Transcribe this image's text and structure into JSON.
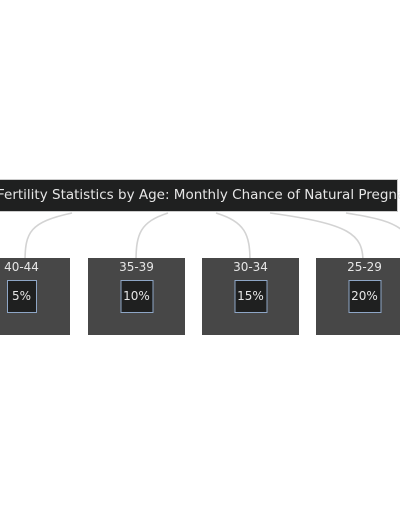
{
  "title": "Fertility Statistics by Age: Monthly Chance of Natural Pregnancy",
  "groups": [
    {
      "age": "40-44",
      "chance": "5%"
    },
    {
      "age": "35-39",
      "chance": "10%"
    },
    {
      "age": "30-34",
      "chance": "15%"
    },
    {
      "age": "25-29",
      "chance": "20%"
    }
  ],
  "colors": {
    "node_fill": "#1f2020",
    "group_fill": "#474747",
    "text": "#e6e6e6",
    "edge": "#d3d3d3",
    "node_border": "#8ea6c6"
  }
}
